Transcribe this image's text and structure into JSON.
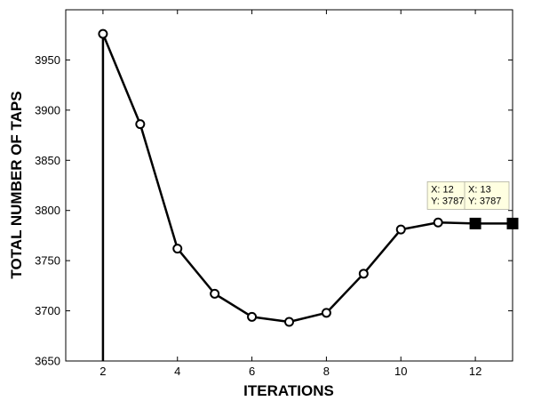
{
  "chart_data": {
    "type": "line",
    "title": "",
    "xlabel": "ITERATIONS",
    "ylabel": "TOTAL NUMBER OF TAPS",
    "xlim": [
      1,
      13
    ],
    "ylim": [
      3650,
      4000
    ],
    "xticks": [
      2,
      4,
      6,
      8,
      10,
      12
    ],
    "yticks": [
      3650,
      3700,
      3750,
      3800,
      3850,
      3900,
      3950
    ],
    "grid": false,
    "line_color": "#000000",
    "marker_face": "#ffffff",
    "series": [
      {
        "x": [
          2,
          2,
          3,
          4,
          5,
          6,
          7,
          8,
          9,
          10,
          11,
          12,
          13
        ],
        "y": [
          3650,
          3976,
          3886,
          3762,
          3717,
          3694,
          3689,
          3698,
          3737,
          3781,
          3788,
          3787,
          3787
        ],
        "circle_markers": [
          false,
          true,
          true,
          true,
          true,
          true,
          true,
          true,
          true,
          true,
          true,
          false,
          false
        ],
        "square_markers": [
          false,
          false,
          false,
          false,
          false,
          false,
          false,
          false,
          false,
          false,
          false,
          true,
          true
        ]
      }
    ],
    "datatips": [
      {
        "x_text": "X: 12",
        "y_text": "Y: 3787",
        "x": 12,
        "y": 3787
      },
      {
        "x_text": "X: 13",
        "y_text": "Y: 3787",
        "x": 13,
        "y": 3787
      }
    ],
    "datatip_bg": "#ffffe1"
  }
}
